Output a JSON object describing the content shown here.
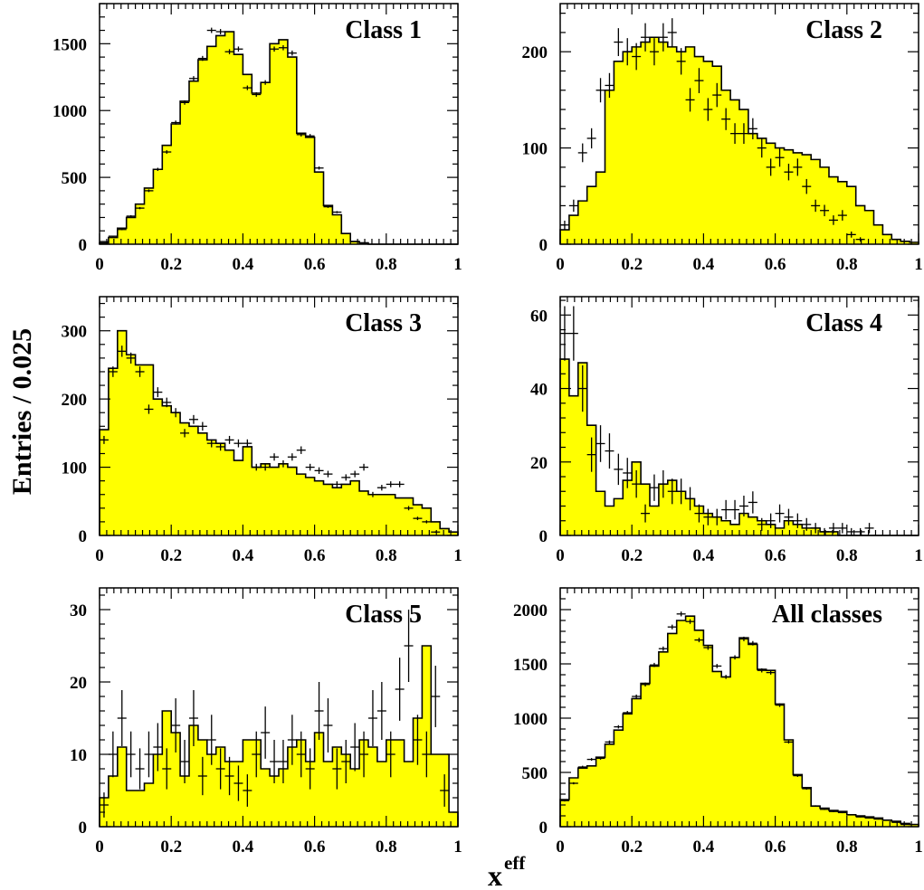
{
  "figure": {
    "ylabel": "Entries / 0.025",
    "xlabel_main": "x",
    "xlabel_sup": "eff"
  },
  "style": {
    "fill_color": "#ffff00",
    "line_color": "#000000"
  },
  "chart_data": [
    {
      "type": "bar",
      "title": "Class 1",
      "bin_width": 0.025,
      "xlim": [
        0,
        1
      ],
      "ylim": [
        0,
        1800
      ],
      "xticks": [
        0,
        0.2,
        0.4,
        0.6,
        0.8,
        1
      ],
      "yticks": [
        0,
        500,
        1000,
        1500
      ],
      "hist": [
        10,
        50,
        120,
        200,
        300,
        420,
        560,
        740,
        900,
        1070,
        1220,
        1380,
        1480,
        1560,
        1590,
        1420,
        1270,
        1130,
        1210,
        1500,
        1530,
        1400,
        830,
        800,
        540,
        290,
        220,
        80,
        20,
        10,
        0,
        0,
        0,
        0,
        0,
        0,
        0,
        0,
        0,
        0
      ],
      "points": [
        [
          0.0125,
          20
        ],
        [
          0.0375,
          60
        ],
        [
          0.0625,
          110
        ],
        [
          0.0875,
          210
        ],
        [
          0.1125,
          270
        ],
        [
          0.1375,
          400
        ],
        [
          0.1625,
          560
        ],
        [
          0.1875,
          690
        ],
        [
          0.2125,
          910
        ],
        [
          0.2375,
          1060
        ],
        [
          0.2625,
          1240
        ],
        [
          0.2875,
          1390
        ],
        [
          0.3125,
          1600
        ],
        [
          0.3375,
          1590
        ],
        [
          0.3625,
          1440
        ],
        [
          0.3875,
          1460
        ],
        [
          0.4125,
          1170
        ],
        [
          0.4375,
          1120
        ],
        [
          0.4625,
          1210
        ],
        [
          0.4875,
          1460
        ],
        [
          0.5125,
          1470
        ],
        [
          0.5375,
          1430
        ],
        [
          0.5625,
          820
        ],
        [
          0.5875,
          810
        ],
        [
          0.6125,
          570
        ],
        [
          0.6375,
          280
        ],
        [
          0.6625,
          240
        ],
        [
          0.6875,
          80
        ],
        [
          0.7125,
          20
        ],
        [
          0.7375,
          10
        ]
      ]
    },
    {
      "type": "bar",
      "title": "Class 2",
      "bin_width": 0.025,
      "xlim": [
        0,
        1
      ],
      "ylim": [
        0,
        250
      ],
      "xticks": [
        0,
        0.2,
        0.4,
        0.6,
        0.8,
        1
      ],
      "yticks": [
        0,
        100,
        200
      ],
      "hist": [
        15,
        30,
        45,
        60,
        75,
        160,
        190,
        200,
        205,
        210,
        215,
        210,
        205,
        200,
        205,
        195,
        190,
        185,
        160,
        150,
        140,
        115,
        110,
        105,
        100,
        98,
        95,
        93,
        88,
        80,
        70,
        65,
        60,
        40,
        35,
        20,
        10,
        5,
        3,
        2
      ],
      "points": [
        [
          0.0125,
          20
        ],
        [
          0.0375,
          40
        ],
        [
          0.0625,
          95
        ],
        [
          0.0875,
          110
        ],
        [
          0.1125,
          160
        ],
        [
          0.1375,
          165
        ],
        [
          0.1625,
          210
        ],
        [
          0.1875,
          200
        ],
        [
          0.2125,
          195
        ],
        [
          0.2375,
          215
        ],
        [
          0.2625,
          200
        ],
        [
          0.2875,
          215
        ],
        [
          0.3125,
          220
        ],
        [
          0.3375,
          190
        ],
        [
          0.3625,
          150
        ],
        [
          0.3875,
          170
        ],
        [
          0.4125,
          140
        ],
        [
          0.4375,
          155
        ],
        [
          0.4625,
          130
        ],
        [
          0.4875,
          115
        ],
        [
          0.5125,
          115
        ],
        [
          0.5375,
          120
        ],
        [
          0.5625,
          100
        ],
        [
          0.5875,
          80
        ],
        [
          0.6125,
          90
        ],
        [
          0.6375,
          75
        ],
        [
          0.6625,
          80
        ],
        [
          0.6875,
          60
        ],
        [
          0.7125,
          40
        ],
        [
          0.7375,
          35
        ],
        [
          0.7625,
          25
        ],
        [
          0.7875,
          30
        ],
        [
          0.8125,
          10
        ],
        [
          0.8375,
          5
        ]
      ]
    },
    {
      "type": "bar",
      "title": "Class 3",
      "bin_width": 0.025,
      "xlim": [
        0,
        1
      ],
      "ylim": [
        0,
        350
      ],
      "xticks": [
        0,
        0.2,
        0.4,
        0.6,
        0.8,
        1
      ],
      "yticks": [
        0,
        100,
        200,
        300
      ],
      "hist": [
        155,
        245,
        300,
        265,
        250,
        250,
        200,
        190,
        180,
        165,
        160,
        150,
        140,
        135,
        125,
        110,
        130,
        100,
        105,
        100,
        105,
        100,
        90,
        85,
        80,
        75,
        70,
        75,
        80,
        65,
        60,
        60,
        60,
        55,
        55,
        45,
        40,
        20,
        10,
        5
      ],
      "points": [
        [
          0.0125,
          140
        ],
        [
          0.0375,
          240
        ],
        [
          0.0625,
          270
        ],
        [
          0.0875,
          260
        ],
        [
          0.1125,
          240
        ],
        [
          0.1375,
          185
        ],
        [
          0.1625,
          210
        ],
        [
          0.1875,
          195
        ],
        [
          0.2125,
          180
        ],
        [
          0.2375,
          150
        ],
        [
          0.2625,
          170
        ],
        [
          0.2875,
          160
        ],
        [
          0.3125,
          135
        ],
        [
          0.3375,
          130
        ],
        [
          0.3625,
          140
        ],
        [
          0.3875,
          135
        ],
        [
          0.4125,
          135
        ],
        [
          0.4375,
          100
        ],
        [
          0.4625,
          100
        ],
        [
          0.4875,
          115
        ],
        [
          0.5125,
          105
        ],
        [
          0.5375,
          115
        ],
        [
          0.5625,
          125
        ],
        [
          0.5875,
          100
        ],
        [
          0.6125,
          95
        ],
        [
          0.6375,
          90
        ],
        [
          0.6625,
          75
        ],
        [
          0.6875,
          85
        ],
        [
          0.7125,
          90
        ],
        [
          0.7375,
          100
        ],
        [
          0.7625,
          60
        ],
        [
          0.7875,
          70
        ],
        [
          0.8125,
          75
        ],
        [
          0.8375,
          75
        ],
        [
          0.8625,
          40
        ],
        [
          0.8875,
          25
        ],
        [
          0.9125,
          20
        ],
        [
          0.9375,
          5
        ]
      ]
    },
    {
      "type": "bar",
      "title": "Class 4",
      "bin_width": 0.025,
      "xlim": [
        0,
        1
      ],
      "ylim": [
        0,
        65
      ],
      "xticks": [
        0,
        0.2,
        0.4,
        0.6,
        0.8,
        1
      ],
      "yticks": [
        0,
        20,
        40,
        60
      ],
      "hist": [
        48,
        38,
        47,
        30,
        12,
        8,
        10,
        15,
        20,
        14,
        8,
        14,
        15,
        12,
        10,
        8,
        6,
        5,
        4,
        3,
        6,
        5,
        4,
        3,
        2,
        4,
        3,
        2,
        2,
        1,
        1,
        0,
        0,
        0,
        0,
        0,
        0,
        0,
        0,
        0
      ],
      "points": [
        [
          0.0125,
          55
        ],
        [
          0.0375,
          55
        ],
        [
          0.0625,
          40
        ],
        [
          0.0875,
          22
        ],
        [
          0.1125,
          25
        ],
        [
          0.1375,
          23
        ],
        [
          0.1625,
          18
        ],
        [
          0.1875,
          17
        ],
        [
          0.2125,
          14
        ],
        [
          0.2375,
          6
        ],
        [
          0.2625,
          13
        ],
        [
          0.2875,
          14
        ],
        [
          0.3125,
          12
        ],
        [
          0.3375,
          12
        ],
        [
          0.3625,
          10
        ],
        [
          0.3875,
          6
        ],
        [
          0.4125,
          5
        ],
        [
          0.4375,
          5
        ],
        [
          0.4625,
          7
        ],
        [
          0.4875,
          7
        ],
        [
          0.5125,
          8
        ],
        [
          0.5375,
          9
        ],
        [
          0.5625,
          3
        ],
        [
          0.5875,
          4
        ],
        [
          0.6125,
          6
        ],
        [
          0.6375,
          5
        ],
        [
          0.6625,
          4
        ],
        [
          0.6875,
          3
        ],
        [
          0.7125,
          2
        ],
        [
          0.7375,
          1
        ],
        [
          0.7625,
          2
        ],
        [
          0.7875,
          2
        ],
        [
          0.8125,
          1
        ],
        [
          0.8375,
          1
        ],
        [
          0.8625,
          2
        ]
      ]
    },
    {
      "type": "bar",
      "title": "Class 5",
      "bin_width": 0.025,
      "xlim": [
        0,
        1
      ],
      "ylim": [
        0,
        33
      ],
      "xticks": [
        0,
        0.2,
        0.4,
        0.6,
        0.8,
        1
      ],
      "yticks": [
        0,
        10,
        20,
        30
      ],
      "hist": [
        4,
        7,
        11,
        5,
        5,
        6,
        10,
        16,
        13,
        7,
        14,
        12,
        10,
        11,
        9,
        9,
        12,
        12,
        8,
        7,
        8,
        11,
        12,
        9,
        13,
        9,
        11,
        10,
        8,
        12,
        11,
        9,
        12,
        12,
        9,
        15,
        25,
        10,
        10,
        2
      ],
      "points": [
        [
          0.0125,
          3
        ],
        [
          0.0375,
          10
        ],
        [
          0.0625,
          15
        ],
        [
          0.0875,
          10
        ],
        [
          0.1125,
          8
        ],
        [
          0.1375,
          10
        ],
        [
          0.1625,
          11
        ],
        [
          0.1875,
          8
        ],
        [
          0.2125,
          14
        ],
        [
          0.2375,
          9
        ],
        [
          0.2625,
          15
        ],
        [
          0.2875,
          7
        ],
        [
          0.3125,
          12
        ],
        [
          0.3375,
          8
        ],
        [
          0.3625,
          7
        ],
        [
          0.3875,
          6
        ],
        [
          0.4125,
          5
        ],
        [
          0.4375,
          10
        ],
        [
          0.4625,
          13
        ],
        [
          0.4875,
          9
        ],
        [
          0.5125,
          9
        ],
        [
          0.5375,
          12
        ],
        [
          0.5625,
          10
        ],
        [
          0.5875,
          8
        ],
        [
          0.6125,
          16
        ],
        [
          0.6375,
          14
        ],
        [
          0.6625,
          8
        ],
        [
          0.6875,
          9
        ],
        [
          0.7125,
          11
        ],
        [
          0.7375,
          10
        ],
        [
          0.7625,
          15
        ],
        [
          0.7875,
          16
        ],
        [
          0.8125,
          10
        ],
        [
          0.8375,
          19
        ],
        [
          0.8625,
          25
        ],
        [
          0.8875,
          12
        ],
        [
          0.9125,
          10
        ],
        [
          0.9375,
          18
        ],
        [
          0.9625,
          5
        ]
      ]
    },
    {
      "type": "bar",
      "title": "All classes",
      "bin_width": 0.025,
      "xlim": [
        0,
        1
      ],
      "ylim": [
        0,
        2200
      ],
      "xticks": [
        0,
        0.2,
        0.4,
        0.6,
        0.8,
        1
      ],
      "yticks": [
        0,
        500,
        1000,
        1500,
        2000
      ],
      "hist": [
        250,
        450,
        540,
        560,
        640,
        760,
        890,
        1040,
        1180,
        1320,
        1480,
        1610,
        1780,
        1900,
        1940,
        1810,
        1670,
        1430,
        1380,
        1560,
        1740,
        1680,
        1450,
        1440,
        1130,
        800,
        480,
        360,
        190,
        170,
        150,
        140,
        110,
        100,
        90,
        80,
        60,
        50,
        30,
        20
      ],
      "points": [
        [
          0.0125,
          240
        ],
        [
          0.0375,
          400
        ],
        [
          0.0625,
          550
        ],
        [
          0.0875,
          620
        ],
        [
          0.1125,
          630
        ],
        [
          0.1375,
          780
        ],
        [
          0.1625,
          920
        ],
        [
          0.1875,
          1050
        ],
        [
          0.2125,
          1200
        ],
        [
          0.2375,
          1310
        ],
        [
          0.2625,
          1490
        ],
        [
          0.2875,
          1640
        ],
        [
          0.3125,
          1840
        ],
        [
          0.3375,
          1960
        ],
        [
          0.3625,
          1890
        ],
        [
          0.3875,
          1720
        ],
        [
          0.4125,
          1650
        ],
        [
          0.4375,
          1480
        ],
        [
          0.4625,
          1380
        ],
        [
          0.4875,
          1560
        ],
        [
          0.5125,
          1730
        ],
        [
          0.5375,
          1690
        ],
        [
          0.5625,
          1440
        ],
        [
          0.5875,
          1420
        ],
        [
          0.6125,
          1120
        ],
        [
          0.6375,
          780
        ],
        [
          0.6625,
          470
        ],
        [
          0.6875,
          350
        ],
        [
          0.7125,
          190
        ],
        [
          0.7375,
          160
        ],
        [
          0.7625,
          140
        ],
        [
          0.7875,
          130
        ],
        [
          0.8125,
          110
        ],
        [
          0.8375,
          90
        ],
        [
          0.8625,
          80
        ],
        [
          0.8875,
          70
        ],
        [
          0.9125,
          60
        ],
        [
          0.9375,
          40
        ],
        [
          0.9625,
          20
        ]
      ]
    }
  ]
}
